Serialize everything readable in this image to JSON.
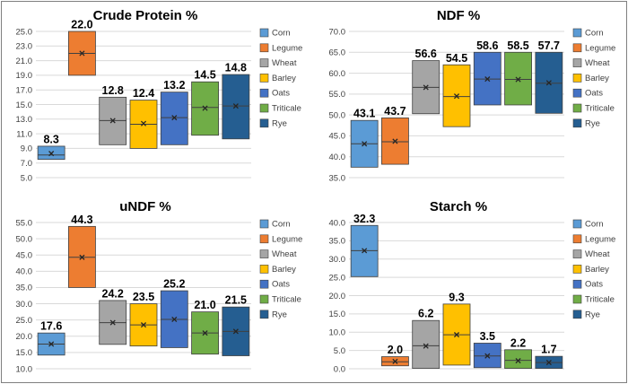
{
  "colors": {
    "Corn": "#5b9bd5",
    "Legume": "#ed7d31",
    "Wheat": "#a5a5a5",
    "Barley": "#ffc000",
    "Oats": "#4472c4",
    "Triticale": "#70ad47",
    "Rye": "#255e91",
    "grid": "#d9d9d9",
    "box_edge": "#404040",
    "median_line": "#404040"
  },
  "marker_icon": "x-mark",
  "chart_data": [
    {
      "type": "box",
      "title": "Crude Protein %",
      "ylim": [
        5.0,
        25.0
      ],
      "yticks": [
        "5.0",
        "7.0",
        "9.0",
        "11.0",
        "13.0",
        "15.0",
        "17.0",
        "19.0",
        "21.0",
        "23.0",
        "25.0"
      ],
      "grid": true,
      "legend_position": "right",
      "categories": [
        "Corn",
        "Legume",
        "Wheat",
        "Barley",
        "Oats",
        "Triticale",
        "Rye"
      ],
      "box_low": [
        7.5,
        19.0,
        9.5,
        9.0,
        9.5,
        10.8,
        10.3
      ],
      "box_high": [
        9.3,
        25.0,
        16.0,
        15.6,
        16.7,
        18.1,
        19.1
      ],
      "median": [
        8.1,
        22.0,
        12.8,
        12.3,
        13.2,
        14.6,
        14.8
      ],
      "mean": [
        8.3,
        22.0,
        12.8,
        12.4,
        13.2,
        14.5,
        14.8
      ],
      "mean_labels": [
        "8.3",
        "22.0",
        "12.8",
        "12.4",
        "13.2",
        "14.5",
        "14.8"
      ]
    },
    {
      "type": "box",
      "title": "NDF %",
      "ylim": [
        35.0,
        70.0
      ],
      "yticks": [
        "35.0",
        "40.0",
        "45.0",
        "50.0",
        "55.0",
        "60.0",
        "65.0",
        "70.0"
      ],
      "grid": true,
      "legend_position": "right",
      "categories": [
        "Corn",
        "Legume",
        "Wheat",
        "Barley",
        "Oats",
        "Triticale",
        "Rye"
      ],
      "box_low": [
        37.5,
        38.2,
        50.3,
        47.2,
        52.4,
        52.4,
        50.4
      ],
      "box_high": [
        48.7,
        49.3,
        63.0,
        62.0,
        65.0,
        65.0,
        65.0
      ],
      "median": [
        43.1,
        43.6,
        56.6,
        54.4,
        58.6,
        58.5,
        57.6
      ],
      "mean": [
        43.1,
        43.7,
        56.6,
        54.5,
        58.6,
        58.5,
        57.7
      ],
      "mean_labels": [
        "43.1",
        "43.7",
        "56.6",
        "54.5",
        "58.6",
        "58.5",
        "57.7"
      ]
    },
    {
      "type": "box",
      "title": "uNDF %",
      "ylim": [
        10.0,
        55.0
      ],
      "yticks": [
        "10.0",
        "15.0",
        "20.0",
        "25.0",
        "30.0",
        "35.0",
        "40.0",
        "45.0",
        "50.0",
        "55.0"
      ],
      "grid": true,
      "legend_position": "right",
      "categories": [
        "Corn",
        "Legume",
        "Wheat",
        "Barley",
        "Oats",
        "Triticale",
        "Rye"
      ],
      "box_low": [
        14.2,
        35.0,
        17.5,
        17.0,
        16.5,
        14.5,
        14.0
      ],
      "box_high": [
        21.0,
        53.8,
        31.0,
        30.0,
        34.0,
        27.5,
        29.0
      ],
      "median": [
        17.6,
        44.3,
        24.2,
        23.5,
        25.2,
        21.0,
        21.5
      ],
      "mean": [
        17.6,
        44.3,
        24.2,
        23.5,
        25.2,
        21.0,
        21.5
      ],
      "mean_labels": [
        "17.6",
        "44.3",
        "24.2",
        "23.5",
        "25.2",
        "21.0",
        "21.5"
      ]
    },
    {
      "type": "box",
      "title": "Starch %",
      "ylim": [
        0.0,
        40.0
      ],
      "yticks": [
        "0.0",
        "5.0",
        "10.0",
        "15.0",
        "20.0",
        "25.0",
        "30.0",
        "35.0",
        "40.0"
      ],
      "grid": true,
      "legend_position": "right",
      "categories": [
        "Corn",
        "Legume",
        "Wheat",
        "Barley",
        "Oats",
        "Triticale",
        "Rye"
      ],
      "box_low": [
        25.2,
        0.8,
        0.1,
        1.0,
        0.3,
        0.1,
        0.1
      ],
      "box_high": [
        39.2,
        3.3,
        13.2,
        17.7,
        7.0,
        5.2,
        3.4
      ],
      "median": [
        32.3,
        1.9,
        6.3,
        9.3,
        3.5,
        2.3,
        1.7
      ],
      "mean": [
        32.3,
        2.0,
        6.2,
        9.3,
        3.5,
        2.2,
        1.7
      ],
      "mean_labels": [
        "32.3",
        "2.0",
        "6.2",
        "9.3",
        "3.5",
        "2.2",
        "1.7"
      ]
    }
  ]
}
